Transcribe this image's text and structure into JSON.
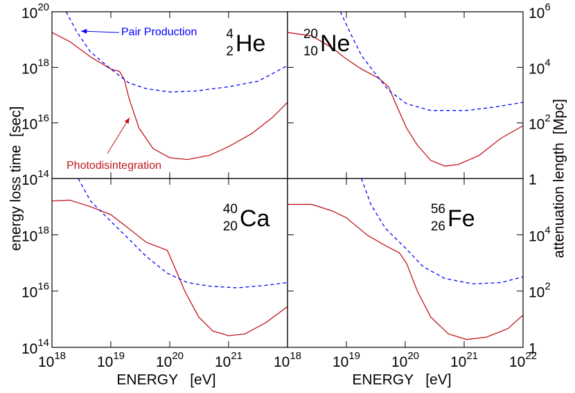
{
  "figure": {
    "ylabel": "energy loss time  [sec]",
    "y2label": "attenuation length  [Mpc]"
  },
  "chart_data": [
    {
      "type": "line",
      "xscale": "log",
      "yscale": "log",
      "xlim": [
        1e+18,
        1e+22
      ],
      "ylim": [
        100000000000000.0,
        1e+20
      ],
      "yticks": [
        {
          "value": 1e+20,
          "label": "10^20"
        },
        {
          "value": 1e+18,
          "label": "10^18"
        },
        {
          "value": 1e+16,
          "label": "10^16"
        },
        {
          "value": 100000000000000.0,
          "label": "10^14"
        }
      ],
      "isotope": {
        "mass": 4,
        "charge": 2,
        "symbol": "He"
      },
      "series": [
        {
          "name": "Photodisintegration",
          "color": "#c0151c",
          "line_style": "solid",
          "x": [
            1e+18,
            2e+18,
            4.5e+18,
            1e+19,
            1.4e+19,
            1.7e+19,
            2e+19,
            3e+19,
            5.2e+19,
            1e+20,
            2e+20,
            4.7e+20,
            1e+21,
            2.5e+21,
            5.6e+21,
            1e+22
          ],
          "values": [
            1.8e+19,
            8.5e+18,
            2.4e+18,
            8.7e+17,
            7.2e+17,
            3.6e+17,
            8.7e+16,
            6600000000000000.0,
            1200000000000000.0,
            560000000000000.0,
            480000000000000.0,
            680000000000000.0,
            1400000000000000.0,
            4200000000000000.0,
            1.6e+16,
            5.5e+16
          ]
        },
        {
          "name": "Pair Production",
          "color": "#0000ff",
          "line_style": "dashed",
          "x": [
            1.74e+18,
            2.6e+18,
            4.5e+18,
            1e+19,
            2e+19,
            4e+19,
            1e+20,
            2.7e+20,
            1e+21,
            3.2e+21,
            1e+22
          ],
          "values": [
            1e+20,
            2e+19,
            3.6e+18,
            8.7e+17,
            2.8e+17,
            1.7e+17,
            1.3e+17,
            1.4e+17,
            2e+17,
            3.2e+17,
            1.15e+18
          ]
        }
      ]
    },
    {
      "type": "line",
      "xscale": "log",
      "yscale": "log",
      "xlim": [
        1e+18,
        1e+22
      ],
      "ylim": [
        100000000000000.0,
        1e+20
      ],
      "y2scale": "log",
      "y2lim": [
        1,
        1000000
      ],
      "y2ticks": [
        {
          "value": 1000000,
          "label": "10^6"
        },
        {
          "value": 10000,
          "label": "10^4"
        },
        {
          "value": 100,
          "label": "10^2"
        },
        1
      ],
      "isotope": {
        "mass": 20,
        "charge": 10,
        "symbol": "Ne"
      },
      "series": [
        {
          "color": "#c0151c",
          "line_style": "solid",
          "x": [
            1e+18,
            2.6e+18,
            5.9e+18,
            1e+19,
            1.8e+19,
            3.5e+19,
            5.2e+19,
            6.9e+19,
            1.05e+20,
            1.6e+20,
            2.7e+20,
            4.7e+20,
            7.9e+20,
            1.8e+21,
            4.2e+21,
            1e+22
          ],
          "values": [
            1.8e+19,
            1.35e+19,
            4.8e+18,
            2e+18,
            8.7e+17,
            4.1e+17,
            2e+17,
            4.9e+16,
            6600000000000000.0,
            1600000000000000.0,
            450000000000000.0,
            280000000000000.0,
            320000000000000.0,
            680000000000000.0,
            2800000000000000.0,
            7900000000000000.0
          ]
        },
        {
          "color": "#0000ff",
          "line_style": "dashed",
          "x": [
            7.9e+18,
            1.2e+19,
            1.8e+19,
            3e+19,
            5.2e+19,
            1.05e+20,
            2.7e+20,
            1.1e+21,
            3.2e+21,
            1e+22
          ],
          "values": [
            1e+20,
            1.5e+19,
            2.7e+18,
            6.5e+17,
            1.5e+17,
            4.9e+16,
            2.8e+16,
            2.8e+16,
            3.7e+16,
            5.5e+16
          ]
        }
      ]
    },
    {
      "type": "line",
      "xscale": "log",
      "yscale": "log",
      "xlim": [
        1e+18,
        1e+22
      ],
      "ylim": [
        100000000000000.0,
        1e+20
      ],
      "xticks": [
        {
          "value": 1e+18,
          "label": "10^18"
        },
        {
          "value": 1e+19,
          "label": "10^19"
        },
        {
          "value": 1e+20,
          "label": "10^20"
        },
        {
          "value": 1e+21,
          "label": "10^21"
        }
      ],
      "yticks": [
        {
          "value": 1e+18,
          "label": "10^18"
        },
        {
          "value": 1e+16,
          "label": "10^16"
        },
        {
          "value": 100000000000000.0,
          "label": "10^14"
        }
      ],
      "xlabel": "ENERGY   [eV]",
      "isotope": {
        "mass": 40,
        "charge": 20,
        "symbol": "Ca"
      },
      "series": [
        {
          "color": "#c0151c",
          "line_style": "solid",
          "x": [
            1e+18,
            2e+18,
            4.5e+18,
            1e+19,
            2e+19,
            4e+19,
            6.9e+19,
            9.1e+19,
            1.2e+20,
            1.8e+20,
            3.1e+20,
            5.4e+20,
            1e+21,
            1.9e+21,
            4.3e+21,
            1e+22
          ],
          "values": [
            1.6e+19,
            1.7e+19,
            1e+19,
            5.2e+18,
            1.7e+18,
            5.4e+17,
            3.5e+17,
            2.8e+17,
            7.4e+16,
            1e+16,
            1200000000000000.0,
            380000000000000.0,
            260000000000000.0,
            300000000000000.0,
            760000000000000.0,
            2800000000000000.0
          ]
        },
        {
          "color": "#0000ff",
          "line_style": "dashed",
          "x": [
            2.8e+18,
            4.5e+18,
            1e+19,
            2e+19,
            4e+19,
            9.1e+19,
            2e+20,
            4.7e+20,
            1.4e+21,
            4.3e+21,
            1e+22
          ],
          "values": [
            1e+20,
            1.6e+19,
            3e+18,
            7.2e+17,
            1.7e+17,
            4.3e+16,
            2e+16,
            1.5e+16,
            1.3e+16,
            1.6e+16,
            2e+16
          ]
        }
      ]
    },
    {
      "type": "line",
      "xscale": "log",
      "yscale": "log",
      "xlim": [
        1e+18,
        1e+22
      ],
      "ylim": [
        100000000000000.0,
        1e+20
      ],
      "xticks": [
        {
          "value": 1e+18,
          "label": "10^18"
        },
        {
          "value": 1e+19,
          "label": "10^19"
        },
        {
          "value": 1e+20,
          "label": "10^20"
        },
        {
          "value": 1e+21,
          "label": "10^21"
        },
        {
          "value": 1e+22,
          "label": "10^22"
        }
      ],
      "y2scale": "log",
      "y2lim": [
        1,
        1000000
      ],
      "y2ticks": [
        {
          "value": 10000,
          "label": "10^4"
        },
        {
          "value": 100,
          "label": "10^2"
        },
        1
      ],
      "xlabel": "ENERGY   [eV]",
      "isotope": {
        "mass": 56,
        "charge": 26,
        "symbol": "Fe"
      },
      "series": [
        {
          "color": "#c0151c",
          "line_style": "solid",
          "x": [
            1e+18,
            2.6e+18,
            5.9e+18,
            1e+19,
            2.3e+19,
            4.6e+19,
            7.9e+19,
            1.05e+20,
            1.6e+20,
            2.7e+20,
            5.4e+20,
            1.1e+21,
            2.4e+21,
            5.5e+21,
            1e+22
          ],
          "values": [
            1.2e+19,
            1.2e+19,
            6.9e+18,
            4e+18,
            9.5e+17,
            4.1e+17,
            2.3e+17,
            9.8e+16,
            1e+16,
            1200000000000000.0,
            300000000000000.0,
            190000000000000.0,
            230000000000000.0,
            460000000000000.0,
            1400000000000000.0
          ]
        },
        {
          "color": "#0000ff",
          "line_style": "dashed",
          "x": [
            1.8e+19,
            2.6e+19,
            4.6e+19,
            1.05e+20,
            2e+20,
            4.7e+20,
            1.4e+21,
            4.2e+21,
            1e+22
          ],
          "values": [
            1e+20,
            1.2e+19,
            1.7e+18,
            3.1e+17,
            7.4e+16,
            2.8e+16,
            1.8e+16,
            2e+16,
            3.2e+16
          ]
        }
      ]
    }
  ]
}
